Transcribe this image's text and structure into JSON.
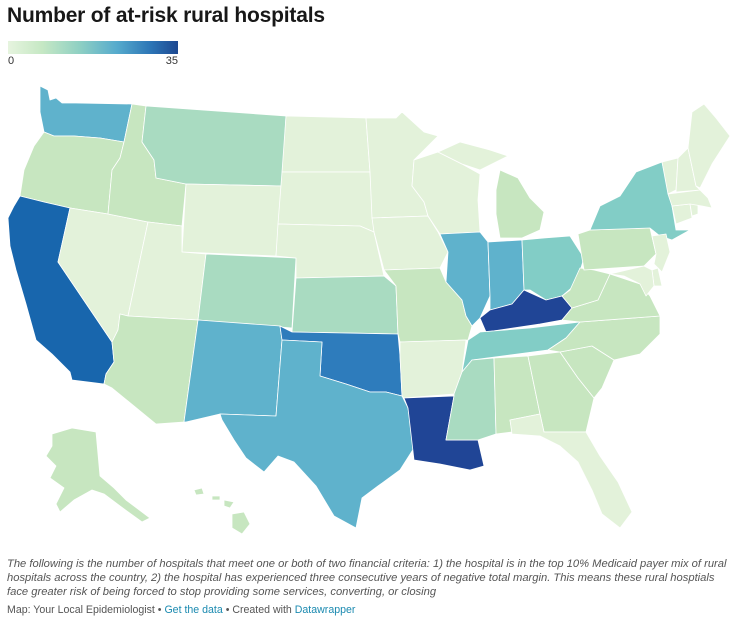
{
  "title": "Number of at-risk rural hospitals",
  "legend": {
    "min_label": "0",
    "max_label": "35"
  },
  "colors": {
    "v1": "#e3f2da",
    "v2": "#c7e6c0",
    "v3": "#a9dbc1",
    "v4": "#82cdc6",
    "v5": "#5fb2cc",
    "v6": "#2e7cbc",
    "v7": "#1866ad",
    "v8": "#204596"
  },
  "description": "The following is the number of hospitals that meet one or both of two financial criteria: 1) the hospital is in the top 10% Medicaid payer mix of rural hospitals across the country, 2) the hospital has experienced three consecutive years of negative total margin. This means these rural hosptials face greater risk of being forced to stop providing some services, converting, or closing",
  "footer": {
    "source": "Map: Your Local Epidemiologist",
    "sep1": " • ",
    "get_data": "Get the data",
    "sep2": " • Created with ",
    "tool": "Datawrapper"
  },
  "states": [
    {
      "id": "WA",
      "level": "v5"
    },
    {
      "id": "OR",
      "level": "v2"
    },
    {
      "id": "CA",
      "level": "v7"
    },
    {
      "id": "ID",
      "level": "v2"
    },
    {
      "id": "NV",
      "level": "v1"
    },
    {
      "id": "MT",
      "level": "v3"
    },
    {
      "id": "WY",
      "level": "v1"
    },
    {
      "id": "UT",
      "level": "v1"
    },
    {
      "id": "AZ",
      "level": "v2"
    },
    {
      "id": "CO",
      "level": "v3"
    },
    {
      "id": "NM",
      "level": "v5"
    },
    {
      "id": "ND",
      "level": "v1"
    },
    {
      "id": "SD",
      "level": "v1"
    },
    {
      "id": "NE",
      "level": "v1"
    },
    {
      "id": "KS",
      "level": "v3"
    },
    {
      "id": "OK",
      "level": "v6"
    },
    {
      "id": "TX",
      "level": "v5"
    },
    {
      "id": "MN",
      "level": "v1"
    },
    {
      "id": "IA",
      "level": "v1"
    },
    {
      "id": "MO",
      "level": "v2"
    },
    {
      "id": "AR",
      "level": "v1"
    },
    {
      "id": "LA",
      "level": "v8"
    },
    {
      "id": "WI",
      "level": "v1"
    },
    {
      "id": "MI_UP",
      "level": "v1"
    },
    {
      "id": "MI",
      "level": "v2"
    },
    {
      "id": "IL",
      "level": "v5"
    },
    {
      "id": "IN",
      "level": "v5"
    },
    {
      "id": "OH",
      "level": "v4"
    },
    {
      "id": "KY",
      "level": "v8"
    },
    {
      "id": "TN",
      "level": "v4"
    },
    {
      "id": "MS",
      "level": "v3"
    },
    {
      "id": "AL",
      "level": "v2"
    },
    {
      "id": "GA",
      "level": "v2"
    },
    {
      "id": "FL",
      "level": "v1"
    },
    {
      "id": "SC",
      "level": "v2"
    },
    {
      "id": "NC",
      "level": "v2"
    },
    {
      "id": "VA",
      "level": "v2"
    },
    {
      "id": "WV",
      "level": "v2"
    },
    {
      "id": "PA",
      "level": "v2"
    },
    {
      "id": "NY",
      "level": "v4"
    },
    {
      "id": "NJ",
      "level": "v1"
    },
    {
      "id": "DE",
      "level": "v1"
    },
    {
      "id": "MD",
      "level": "v1"
    },
    {
      "id": "CT",
      "level": "v1"
    },
    {
      "id": "RI",
      "level": "v1"
    },
    {
      "id": "MA",
      "level": "v1"
    },
    {
      "id": "VT",
      "level": "v1"
    },
    {
      "id": "NH",
      "level": "v1"
    },
    {
      "id": "ME",
      "level": "v1"
    },
    {
      "id": "AK",
      "level": "v2"
    },
    {
      "id": "HI",
      "level": "v2"
    }
  ]
}
